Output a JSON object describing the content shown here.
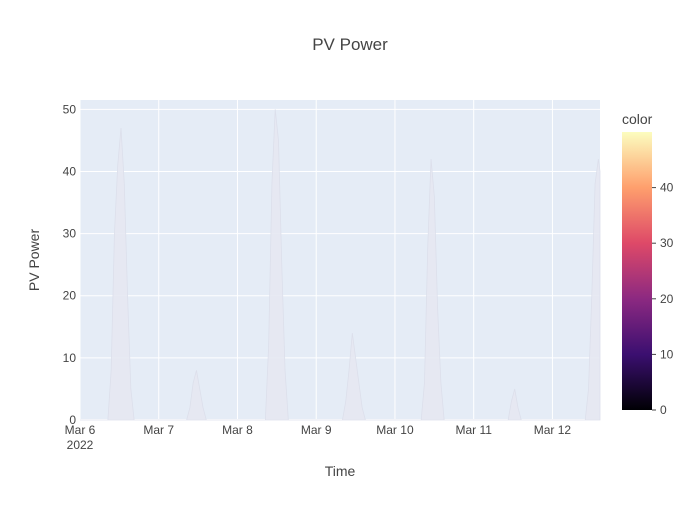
{
  "chart_data": {
    "type": "area",
    "title": "PV Power",
    "xlabel": "Time",
    "ylabel": "PV Power",
    "x_range": [
      "2022-03-06",
      "2022-03-12 14:30"
    ],
    "ylim": [
      0,
      51.5
    ],
    "x_ticks": [
      {
        "value": "2022-03-06",
        "label": "Mar 6",
        "sublabel": "2022"
      },
      {
        "value": "2022-03-07",
        "label": "Mar 7"
      },
      {
        "value": "2022-03-08",
        "label": "Mar 8"
      },
      {
        "value": "2022-03-09",
        "label": "Mar 9"
      },
      {
        "value": "2022-03-10",
        "label": "Mar 10"
      },
      {
        "value": "2022-03-11",
        "label": "Mar 11"
      },
      {
        "value": "2022-03-12",
        "label": "Mar 12"
      }
    ],
    "y_ticks": [
      0,
      10,
      20,
      30,
      40,
      50
    ],
    "grid": true,
    "plot_background": "#e5ecf6",
    "series": [
      {
        "color": "#e6e8f2",
        "points": [
          [
            "2022-03-06 00:00",
            0
          ],
          [
            "2022-03-06 08:30",
            0
          ],
          [
            "2022-03-06 09:30",
            8
          ],
          [
            "2022-03-06 10:30",
            30
          ],
          [
            "2022-03-06 11:30",
            41
          ],
          [
            "2022-03-06 12:30",
            47
          ],
          [
            "2022-03-06 13:30",
            38
          ],
          [
            "2022-03-06 14:30",
            20
          ],
          [
            "2022-03-06 15:30",
            5
          ],
          [
            "2022-03-06 16:30",
            0
          ],
          [
            "2022-03-07 08:30",
            0
          ],
          [
            "2022-03-07 09:30",
            2
          ],
          [
            "2022-03-07 10:30",
            6
          ],
          [
            "2022-03-07 11:30",
            8
          ],
          [
            "2022-03-07 12:30",
            5
          ],
          [
            "2022-03-07 13:30",
            2
          ],
          [
            "2022-03-07 14:30",
            0
          ],
          [
            "2022-03-08 08:30",
            0
          ],
          [
            "2022-03-08 09:30",
            12
          ],
          [
            "2022-03-08 10:30",
            38
          ],
          [
            "2022-03-08 11:30",
            50
          ],
          [
            "2022-03-08 12:30",
            45
          ],
          [
            "2022-03-08 13:30",
            25
          ],
          [
            "2022-03-08 14:30",
            8
          ],
          [
            "2022-03-08 15:30",
            0
          ],
          [
            "2022-03-09 08:00",
            0
          ],
          [
            "2022-03-09 09:00",
            3
          ],
          [
            "2022-03-09 10:00",
            8
          ],
          [
            "2022-03-09 11:00",
            14
          ],
          [
            "2022-03-09 12:00",
            10
          ],
          [
            "2022-03-09 13:00",
            6
          ],
          [
            "2022-03-09 14:00",
            2
          ],
          [
            "2022-03-09 15:00",
            0
          ],
          [
            "2022-03-10 08:00",
            0
          ],
          [
            "2022-03-10 09:00",
            6
          ],
          [
            "2022-03-10 10:00",
            28
          ],
          [
            "2022-03-10 11:00",
            42
          ],
          [
            "2022-03-10 12:00",
            36
          ],
          [
            "2022-03-10 13:00",
            18
          ],
          [
            "2022-03-10 14:00",
            6
          ],
          [
            "2022-03-10 15:00",
            0
          ],
          [
            "2022-03-11 10:30",
            0
          ],
          [
            "2022-03-11 11:30",
            3
          ],
          [
            "2022-03-11 12:30",
            5
          ],
          [
            "2022-03-11 13:30",
            2
          ],
          [
            "2022-03-11 14:30",
            0
          ],
          [
            "2022-03-12 10:00",
            0
          ],
          [
            "2022-03-12 11:00",
            5
          ],
          [
            "2022-03-12 12:00",
            20
          ],
          [
            "2022-03-12 13:00",
            38
          ],
          [
            "2022-03-12 14:00",
            42
          ],
          [
            "2022-03-12 14:30",
            40
          ]
        ]
      }
    ],
    "colorbar": {
      "title": "color",
      "ticks": [
        0,
        10,
        20,
        30,
        40
      ],
      "range": [
        0,
        50
      ],
      "scale": [
        "#000004",
        "#3b0f70",
        "#8c2981",
        "#de4968",
        "#fe9f6d",
        "#fcfdbf"
      ]
    }
  }
}
